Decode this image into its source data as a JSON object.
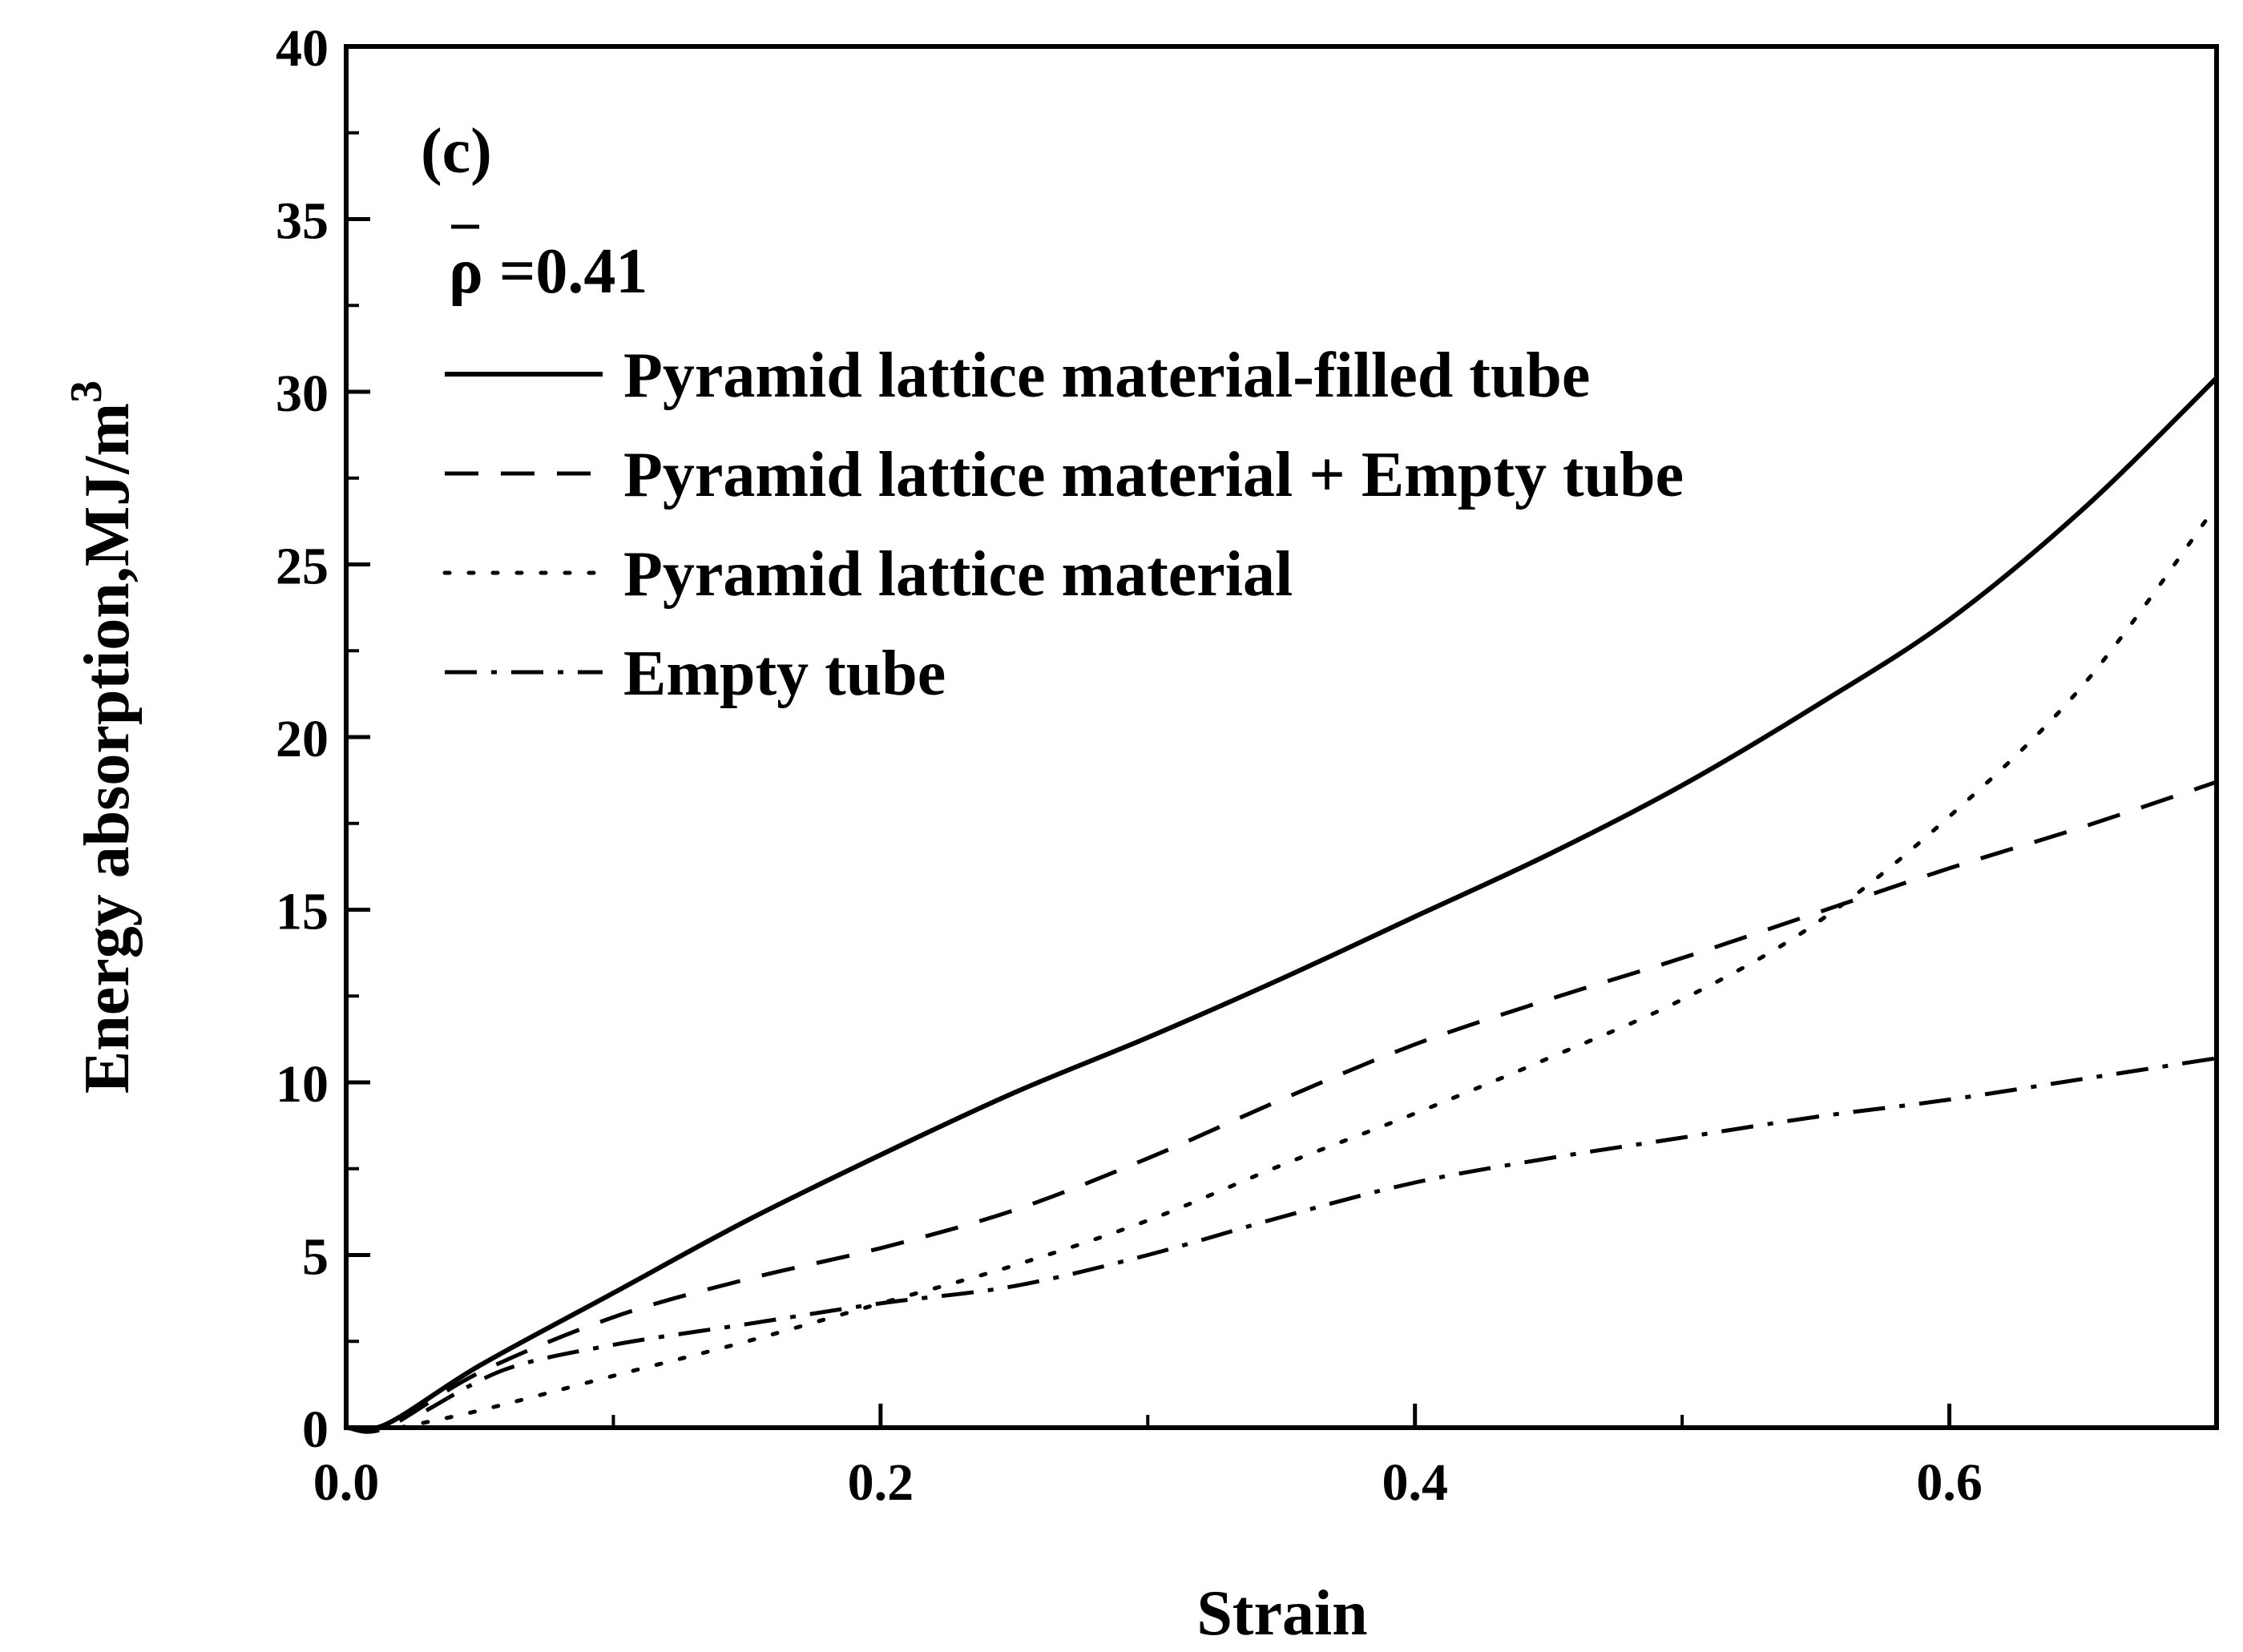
{
  "chart_data": {
    "type": "line",
    "panel_label": "(c)",
    "density_label": "ρ =0.41",
    "xlabel": "Strain",
    "ylabel": "Energy absorption,MJ/m",
    "ylabel_superscript": "3",
    "xlim": [
      0,
      0.7
    ],
    "ylim": [
      0,
      40
    ],
    "x_ticks": [
      0.0,
      0.2,
      0.4,
      0.6
    ],
    "x_tick_labels": [
      "0.0",
      "0.2",
      "0.4",
      "0.6"
    ],
    "y_ticks": [
      0,
      5,
      10,
      15,
      20,
      25,
      30,
      35,
      40
    ],
    "y_tick_labels": [
      "0",
      "5",
      "10",
      "15",
      "20",
      "25",
      "30",
      "35",
      "40"
    ],
    "legend_position": "top-left",
    "series": [
      {
        "name": "Pyramid lattice material-filled tube",
        "style": "solid",
        "x": [
          0.0,
          0.015,
          0.05,
          0.1,
          0.15,
          0.2,
          0.25,
          0.3,
          0.35,
          0.4,
          0.45,
          0.5,
          0.55,
          0.6,
          0.65,
          0.7
        ],
        "y": [
          0.0,
          0.1,
          1.8,
          3.9,
          6.0,
          7.9,
          9.7,
          11.3,
          13.0,
          14.8,
          16.6,
          18.6,
          20.9,
          23.4,
          26.6,
          30.4
        ]
      },
      {
        "name": "Pyramid lattice material + Empty tube",
        "style": "dashed",
        "x": [
          0.0,
          0.015,
          0.05,
          0.1,
          0.15,
          0.2,
          0.25,
          0.3,
          0.35,
          0.4,
          0.45,
          0.5,
          0.55,
          0.6,
          0.65,
          0.7
        ],
        "y": [
          0.0,
          0.0,
          1.6,
          3.2,
          4.3,
          5.2,
          6.3,
          7.8,
          9.5,
          11.1,
          12.4,
          13.6,
          14.9,
          16.2,
          17.4,
          18.7
        ]
      },
      {
        "name": "Pyramid lattice material",
        "style": "dotted",
        "x": [
          0.02,
          0.05,
          0.1,
          0.15,
          0.2,
          0.25,
          0.3,
          0.35,
          0.4,
          0.45,
          0.5,
          0.55,
          0.6,
          0.65,
          0.7
        ],
        "y": [
          0.0,
          0.5,
          1.5,
          2.5,
          3.6,
          4.7,
          6.0,
          7.6,
          9.1,
          10.7,
          12.4,
          14.6,
          17.7,
          21.5,
          26.7
        ]
      },
      {
        "name": "Empty tube",
        "style": "dashdot",
        "x": [
          0.03,
          0.06,
          0.1,
          0.15,
          0.2,
          0.25,
          0.3,
          0.35,
          0.4,
          0.45,
          0.5,
          0.55,
          0.6,
          0.65,
          0.7
        ],
        "y": [
          0.5,
          1.7,
          2.4,
          3.0,
          3.6,
          4.1,
          5.0,
          6.1,
          7.1,
          7.8,
          8.4,
          9.0,
          9.5,
          10.1,
          10.7
        ]
      }
    ]
  }
}
